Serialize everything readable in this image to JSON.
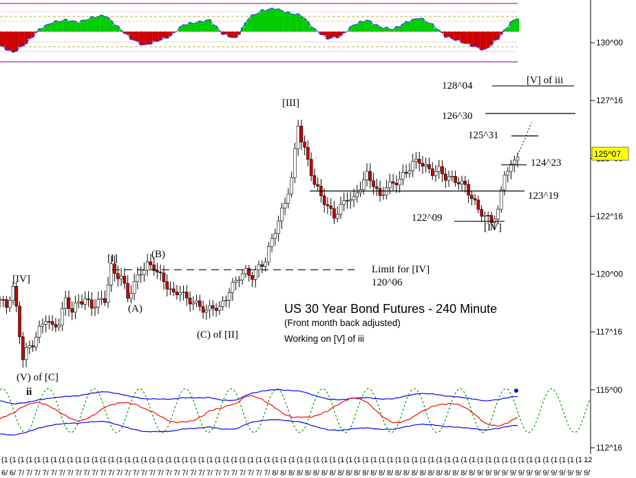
{
  "chart_data": {
    "type": "candlestick",
    "title": "US 30 Year Bond Futures - 240 Minute",
    "subtitle": "(Front month back adjusted)",
    "note": "Working on [V] of iii",
    "y_tick_labels": [
      "130^00",
      "127^16",
      "125^00",
      "122^16",
      "120^00",
      "117^16",
      "115^00",
      "112^16"
    ],
    "y_tick_values": [
      130.0,
      127.5,
      125.0,
      122.5,
      120.0,
      117.5,
      115.0,
      112.5
    ],
    "ylim": [
      112.0,
      131.5
    ],
    "current_price": {
      "label": "125^07",
      "value": 125.22
    },
    "x_tick_labels_top": [
      "(1",
      "(1",
      "(1",
      "(1",
      "(1",
      "(1",
      "(1",
      "(1",
      "(1",
      "(1",
      "(1",
      "(1",
      "(1",
      "(1",
      "(1",
      "(1",
      "(1",
      "(1",
      "(1",
      "(1",
      "(1",
      "(1",
      "(1",
      "(1",
      "(1",
      "(1",
      "(1",
      "(1",
      "(1",
      "(1",
      "(1",
      "(1",
      "(1",
      "(1",
      "(1",
      "(1",
      "(1",
      "(1",
      "(1",
      "(1",
      "(1",
      "(1",
      "(1",
      "(1",
      "(1",
      "(1",
      "(1",
      "(1",
      "(1",
      "(1",
      "(1",
      "(1",
      "(1",
      "(1",
      "(1",
      "(1",
      "(1",
      "(1",
      "(1",
      "(1",
      "(1",
      "(1",
      "(1",
      "(1",
      "(1",
      "(1",
      "(1",
      "(1",
      "(1",
      "(1",
      "(1",
      "12"
    ],
    "x_tick_labels_bottom": [
      "6/",
      "6/",
      "7/",
      "7/",
      "7/",
      "7/",
      "7/",
      "7/",
      "7/",
      "7/",
      "7/",
      "7/",
      "7/",
      "7/",
      "7/",
      "7/",
      "7/",
      "7/",
      "7/",
      "7/",
      "7/",
      "7/",
      "7/",
      "7/",
      "7/",
      "7/",
      "7/",
      "7/",
      "7/",
      "7/",
      "7/",
      "7/",
      "7/",
      "8/",
      "8/",
      "8/",
      "8/",
      "8/",
      "8/",
      "8/",
      "8/",
      "8/",
      "8/",
      "8/",
      "8/",
      "8/",
      "8/",
      "8/",
      "8/",
      "8/",
      "8/",
      "8/",
      "8/",
      "8/",
      "8/",
      "8/",
      "8/",
      "8/",
      "9/",
      "9/",
      "9/",
      "9/",
      "9/",
      "9/",
      "9/",
      "9/",
      "9/",
      "9/",
      "9/",
      "9/",
      "9/",
      "9/"
    ],
    "levels": [
      {
        "label": "128^04",
        "value": 128.13,
        "tag": "[V] of iii"
      },
      {
        "label": "126^30",
        "value": 126.94
      },
      {
        "label": "125^31",
        "value": 125.97
      },
      {
        "label": "124^23",
        "value": 124.72
      },
      {
        "label": "123^19",
        "value": 123.59
      },
      {
        "label": "122^09",
        "value": 122.28
      },
      {
        "label": "Limit for [IV]",
        "value": 120.19,
        "sub": "120^06"
      }
    ],
    "wave_labels": [
      {
        "text": "[IV]",
        "value": 119.9
      },
      {
        "text": "(V) of [C]",
        "value": 115.5
      },
      {
        "text": "ii",
        "value": 115.0
      },
      {
        "text": "[I]",
        "value": 120.7
      },
      {
        "text": "(A)",
        "value": 118.5
      },
      {
        "text": "(B)",
        "value": 120.8
      },
      {
        "text": "(C) of [II]",
        "value": 117.1
      },
      {
        "text": "[III]",
        "value": 127.2
      },
      {
        "text": "[IV]",
        "value": 121.7
      }
    ],
    "price_path": [
      [
        0,
        118.9
      ],
      [
        2,
        118.6
      ],
      [
        4,
        119.4
      ],
      [
        5,
        118.5
      ],
      [
        6,
        117.4
      ],
      [
        7,
        116.4
      ],
      [
        8,
        116.7
      ],
      [
        10,
        117.0
      ],
      [
        12,
        117.6
      ],
      [
        14,
        118.1
      ],
      [
        16,
        117.7
      ],
      [
        18,
        117.9
      ],
      [
        20,
        118.9
      ],
      [
        22,
        118.4
      ],
      [
        24,
        118.8
      ],
      [
        26,
        118.9
      ],
      [
        28,
        118.6
      ],
      [
        30,
        118.8
      ],
      [
        32,
        118.9
      ],
      [
        34,
        120.3
      ],
      [
        35,
        120.0
      ],
      [
        37,
        119.9
      ],
      [
        39,
        119.0
      ],
      [
        41,
        119.6
      ],
      [
        43,
        120.1
      ],
      [
        45,
        120.4
      ],
      [
        47,
        120.3
      ],
      [
        49,
        119.9
      ],
      [
        51,
        119.5
      ],
      [
        53,
        119.1
      ],
      [
        55,
        119.3
      ],
      [
        57,
        118.9
      ],
      [
        59,
        118.8
      ],
      [
        61,
        118.6
      ],
      [
        63,
        118.4
      ],
      [
        65,
        118.6
      ],
      [
        67,
        118.5
      ],
      [
        69,
        119.0
      ],
      [
        71,
        119.5
      ],
      [
        73,
        119.9
      ],
      [
        75,
        120.1
      ],
      [
        77,
        119.9
      ],
      [
        79,
        120.3
      ],
      [
        81,
        120.6
      ],
      [
        83,
        121.5
      ],
      [
        85,
        122.3
      ],
      [
        87,
        123.1
      ],
      [
        89,
        124.1
      ],
      [
        91,
        126.5
      ],
      [
        92,
        125.8
      ],
      [
        94,
        124.9
      ],
      [
        96,
        123.9
      ],
      [
        98,
        123.4
      ],
      [
        100,
        122.9
      ],
      [
        102,
        122.5
      ],
      [
        104,
        122.9
      ],
      [
        106,
        123.3
      ],
      [
        108,
        123.2
      ],
      [
        110,
        123.8
      ],
      [
        112,
        124.3
      ],
      [
        114,
        123.9
      ],
      [
        116,
        123.3
      ],
      [
        118,
        123.8
      ],
      [
        120,
        123.9
      ],
      [
        122,
        124.1
      ],
      [
        124,
        124.4
      ],
      [
        126,
        124.8
      ],
      [
        128,
        124.9
      ],
      [
        130,
        124.6
      ],
      [
        132,
        124.4
      ],
      [
        134,
        124.5
      ],
      [
        136,
        124.2
      ],
      [
        138,
        124.1
      ],
      [
        140,
        124.0
      ],
      [
        142,
        123.8
      ],
      [
        144,
        123.3
      ],
      [
        146,
        122.8
      ],
      [
        148,
        122.5
      ],
      [
        150,
        122.3
      ],
      [
        152,
        122.7
      ],
      [
        154,
        124.4
      ],
      [
        156,
        124.6
      ],
      [
        158,
        125.2
      ]
    ],
    "macd_path": [
      [
        0,
        -0.6
      ],
      [
        4,
        -0.9
      ],
      [
        8,
        -0.5
      ],
      [
        12,
        0.1
      ],
      [
        16,
        0.4
      ],
      [
        20,
        0.5
      ],
      [
        24,
        0.4
      ],
      [
        28,
        0.6
      ],
      [
        32,
        0.7
      ],
      [
        36,
        0.2
      ],
      [
        40,
        -0.3
      ],
      [
        44,
        -0.6
      ],
      [
        48,
        -0.4
      ],
      [
        52,
        -0.2
      ],
      [
        56,
        0.3
      ],
      [
        60,
        0.4
      ],
      [
        64,
        0.5
      ],
      [
        68,
        -0.1
      ],
      [
        72,
        -0.3
      ],
      [
        76,
        0.6
      ],
      [
        80,
        0.9
      ],
      [
        84,
        1.0
      ],
      [
        88,
        0.8
      ],
      [
        92,
        0.7
      ],
      [
        96,
        0.1
      ],
      [
        100,
        -0.3
      ],
      [
        104,
        -0.2
      ],
      [
        108,
        0.3
      ],
      [
        112,
        0.5
      ],
      [
        116,
        0.2
      ],
      [
        120,
        0.1
      ],
      [
        124,
        0.4
      ],
      [
        128,
        0.6
      ],
      [
        132,
        0.3
      ],
      [
        136,
        -0.2
      ],
      [
        140,
        -0.4
      ],
      [
        144,
        -0.6
      ],
      [
        148,
        -0.8
      ],
      [
        152,
        -0.3
      ],
      [
        156,
        0.4
      ],
      [
        158,
        0.6
      ]
    ],
    "macd_colors": {
      "positive": "#00cc00",
      "negative": "#cc0000",
      "band": "#800080",
      "mid": "#999900"
    },
    "osc_colors": {
      "fast": "#ff0000",
      "band": "#0000ff",
      "cycle": "#009900"
    }
  }
}
